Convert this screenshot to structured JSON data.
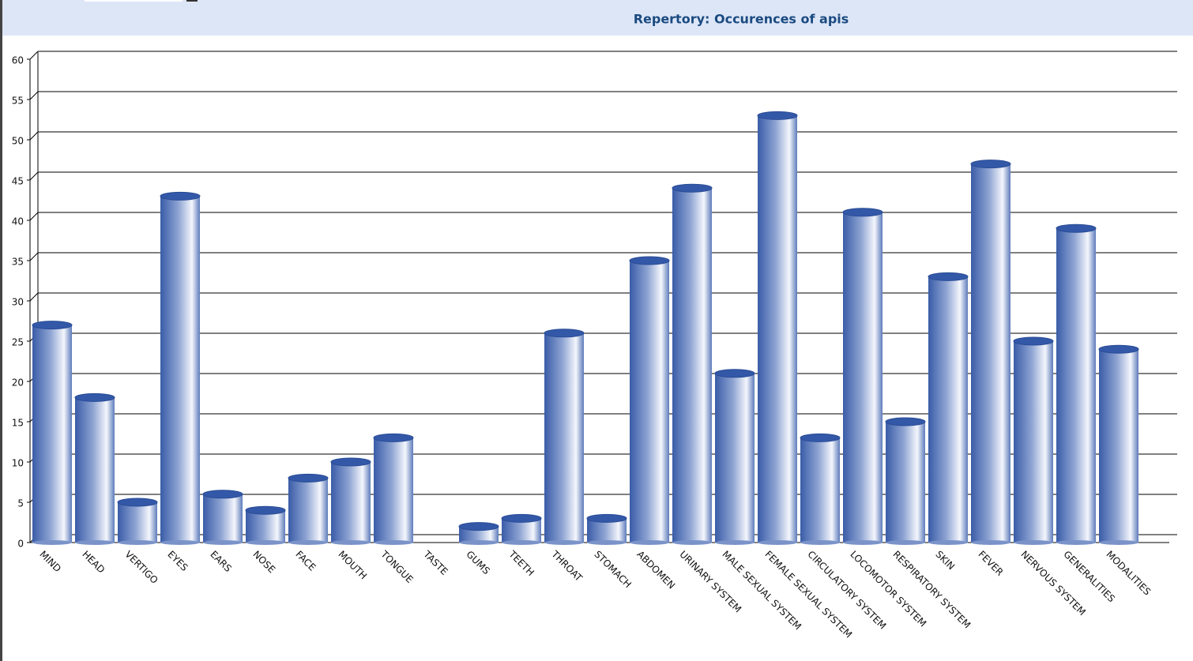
{
  "chart_data": {
    "type": "bar",
    "title": "Repertory: Occurences of apis",
    "categories": [
      "MIND",
      "HEAD",
      "VERTIGO",
      "EYES",
      "EARS",
      "NOSE",
      "FACE",
      "MOUTH",
      "TONGUE",
      "TASTE",
      "GUMS",
      "TEETH",
      "THROAT",
      "STOMACH",
      "ABDOMEN",
      "URINARY SYSTEM",
      "MALE SEXUAL SYSTEM",
      "FEMALE SEXUAL SYSTEM",
      "CIRCULATORY SYSTEM",
      "LOCOMOTOR SYSTEM",
      "RESPIRATORY SYSTEM",
      "SKIN",
      "FEVER",
      "NERVOUS SYSTEM",
      "GENERALITIES",
      "MODALITIES"
    ],
    "values": [
      27,
      18,
      5,
      43,
      6,
      4,
      8,
      10,
      13,
      0,
      2,
      3,
      26,
      3,
      35,
      44,
      21,
      53,
      13,
      41,
      15,
      33,
      47,
      25,
      39,
      24
    ],
    "color": "#3358a8",
    "ylim": [
      0,
      60
    ],
    "yticks": [
      0,
      5,
      10,
      15,
      20,
      25,
      30,
      35,
      40,
      45,
      50,
      55,
      60
    ],
    "grid": true
  }
}
